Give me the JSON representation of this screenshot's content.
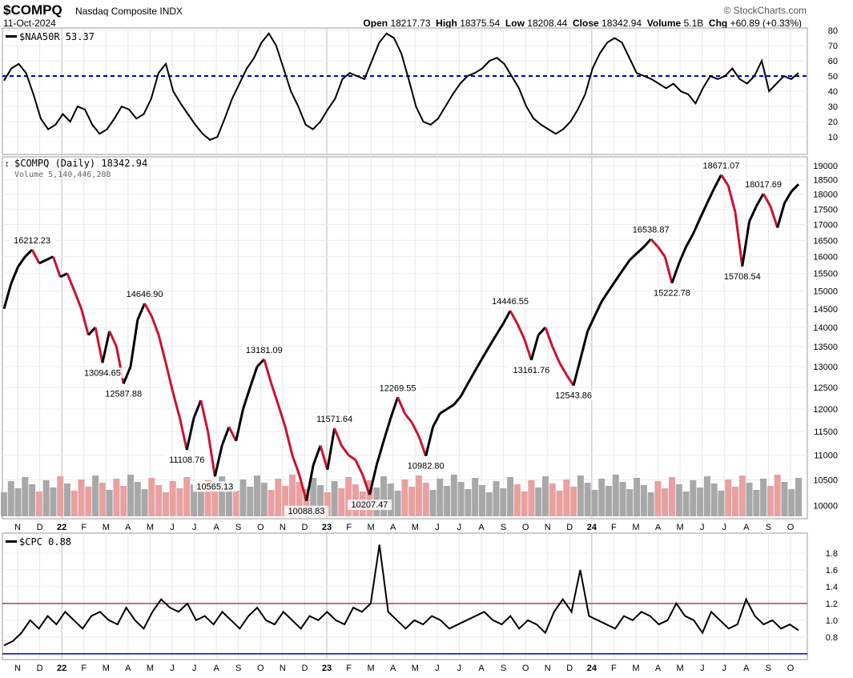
{
  "header": {
    "symbol": "$COMPQ",
    "name": "Nasdaq Composite INDX",
    "date": "11-Oct-2024",
    "source": "© StockCharts.com",
    "open_label": "Open",
    "open": "18217.73",
    "high_label": "High",
    "high": "18375.54",
    "low_label": "Low",
    "low": "18208.44",
    "close_label": "Close",
    "close": "18342.94",
    "volume_label": "Volume",
    "volume": "5.1B",
    "chg_label": "Chg",
    "chg": "+60.89 (+0.33%)"
  },
  "x_axis": {
    "ticks": [
      "N",
      "D",
      "22",
      "F",
      "M",
      "A",
      "M",
      "J",
      "J",
      "A",
      "S",
      "O",
      "N",
      "D",
      "23",
      "F",
      "M",
      "A",
      "M",
      "J",
      "J",
      "A",
      "S",
      "O",
      "N",
      "D",
      "24",
      "F",
      "M",
      "A",
      "M",
      "J",
      "J",
      "A",
      "S",
      "O"
    ],
    "bold_ticks": [
      "22",
      "23",
      "24"
    ]
  },
  "colors": {
    "up": "#000000",
    "down": "#cc1133",
    "threshold": "#0000cc",
    "cpc_ref": "#b04050",
    "vol_up": "#a8a8a8",
    "vol_down": "#e8a0a0"
  },
  "chart_data": [
    {
      "panel": "top",
      "type": "line",
      "legend": "$NAA50R 53.37",
      "ylim": [
        0,
        80
      ],
      "y_ticks": [
        "80",
        "70",
        "60",
        "50",
        "40",
        "30",
        "20",
        "10"
      ],
      "reference_line": {
        "y": 50,
        "style": "dashed"
      },
      "values": [
        47,
        55,
        58,
        52,
        38,
        22,
        15,
        18,
        25,
        20,
        30,
        28,
        18,
        12,
        15,
        22,
        30,
        28,
        22,
        25,
        35,
        52,
        58,
        40,
        32,
        25,
        18,
        12,
        8,
        10,
        22,
        35,
        45,
        55,
        62,
        72,
        78,
        70,
        55,
        40,
        30,
        18,
        15,
        20,
        28,
        35,
        48,
        52,
        50,
        48,
        60,
        72,
        78,
        75,
        65,
        48,
        30,
        20,
        18,
        22,
        30,
        38,
        45,
        50,
        52,
        55,
        60,
        62,
        58,
        50,
        42,
        30,
        22,
        18,
        15,
        12,
        15,
        20,
        28,
        38,
        55,
        65,
        72,
        75,
        72,
        62,
        52,
        50,
        48,
        45,
        42,
        45,
        40,
        38,
        32,
        42,
        50,
        48,
        50,
        55,
        48,
        45,
        50,
        60,
        40,
        45,
        50,
        48,
        52
      ]
    },
    {
      "panel": "main",
      "type": "line",
      "legend": "$COMPQ (Daily) 18342.94",
      "volume_legend": "Volume 5,140,446,208",
      "ylim": [
        9800,
        19200
      ],
      "log_scale": true,
      "y_ticks": [
        "19000",
        "18500",
        "18000",
        "17500",
        "17000",
        "16500",
        "16000",
        "15500",
        "15000",
        "14500",
        "14000",
        "13500",
        "13000",
        "12500",
        "12000",
        "11500",
        "11000",
        "10500",
        "10000"
      ],
      "values": [
        14500,
        15200,
        15700,
        16000,
        16212,
        15800,
        15900,
        16000,
        15400,
        15500,
        15000,
        14500,
        13800,
        14000,
        13094,
        13900,
        13500,
        12588,
        13000,
        14200,
        14647,
        14300,
        13800,
        13100,
        12400,
        11800,
        11109,
        11800,
        12200,
        11500,
        10565,
        11200,
        11600,
        11300,
        12000,
        12500,
        13000,
        13181,
        12600,
        12100,
        11600,
        11000,
        10600,
        10089,
        10800,
        11200,
        10700,
        11572,
        11200,
        11000,
        10900,
        10600,
        10207,
        10800,
        11300,
        11800,
        12270,
        11900,
        11700,
        11400,
        10983,
        11600,
        11900,
        12000,
        12100,
        12300,
        12600,
        12900,
        13200,
        13500,
        13800,
        14100,
        14447,
        14100,
        13700,
        13162,
        13800,
        14000,
        13500,
        13100,
        12800,
        12544,
        13200,
        13900,
        14300,
        14700,
        15000,
        15300,
        15600,
        15900,
        16100,
        16300,
        16539,
        16300,
        16000,
        15223,
        15800,
        16300,
        16700,
        17200,
        17700,
        18200,
        18671,
        18300,
        17400,
        15709,
        17100,
        17600,
        18018,
        17600,
        16900,
        17700,
        18100,
        18343
      ],
      "annotations": [
        {
          "label": "16212.23",
          "at": 4
        },
        {
          "label": "14646.90",
          "at": 20
        },
        {
          "label": "13094.65",
          "at": 14
        },
        {
          "label": "12587.88",
          "at": 17
        },
        {
          "label": "13181.09",
          "at": 37
        },
        {
          "label": "11108.76",
          "at": 26
        },
        {
          "label": "10565.13",
          "at": 30
        },
        {
          "label": "10088.83",
          "at": 43
        },
        {
          "label": "11571.64",
          "at": 47
        },
        {
          "label": "10207.47",
          "at": 52
        },
        {
          "label": "12269.55",
          "at": 56
        },
        {
          "label": "10982.80",
          "at": 60
        },
        {
          "label": "14446.55",
          "at": 72
        },
        {
          "label": "13161.76",
          "at": 75
        },
        {
          "label": "12543.86",
          "at": 81
        },
        {
          "label": "16538.87",
          "at": 92
        },
        {
          "label": "15222.78",
          "at": 95
        },
        {
          "label": "18671.07",
          "at": 102
        },
        {
          "label": "15708.54",
          "at": 105
        },
        {
          "label": "18017.69",
          "at": 108
        }
      ]
    },
    {
      "panel": "bottom",
      "type": "line",
      "legend": "$CPC 0.88",
      "ylim": [
        0.55,
        2.0
      ],
      "y_ticks": [
        "1.8",
        "1.6",
        "1.4",
        "1.2",
        "1.0",
        "0.8"
      ],
      "reference_lines": [
        1.2,
        0.6
      ],
      "values": [
        0.7,
        0.75,
        0.85,
        1.0,
        0.9,
        1.05,
        0.95,
        1.1,
        1.0,
        0.9,
        1.05,
        1.1,
        1.0,
        0.95,
        1.15,
        1.0,
        0.9,
        1.1,
        1.25,
        1.15,
        1.1,
        1.2,
        1.0,
        1.05,
        0.95,
        1.1,
        1.0,
        0.9,
        1.05,
        1.15,
        1.0,
        0.95,
        1.1,
        1.0,
        0.9,
        1.05,
        1.0,
        1.1,
        1.0,
        0.95,
        1.15,
        1.1,
        1.2,
        1.9,
        1.1,
        1.0,
        0.9,
        1.0,
        0.95,
        1.05,
        1.0,
        0.9,
        0.95,
        1.0,
        1.05,
        1.1,
        1.0,
        0.95,
        1.05,
        0.9,
        1.0,
        0.95,
        0.85,
        1.1,
        1.25,
        1.1,
        1.6,
        1.05,
        1.0,
        0.95,
        0.9,
        1.05,
        1.0,
        1.1,
        1.05,
        0.95,
        1.0,
        1.2,
        1.05,
        1.0,
        0.85,
        1.1,
        1.0,
        0.9,
        0.95,
        1.25,
        1.05,
        0.95,
        1.0,
        0.9,
        0.95,
        0.88
      ]
    }
  ]
}
